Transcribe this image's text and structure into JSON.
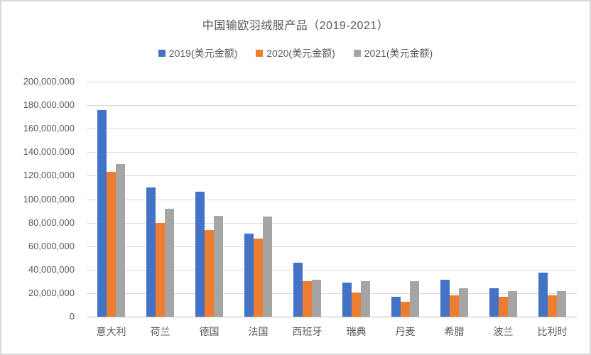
{
  "chart_data": {
    "type": "bar",
    "title": "中国输欧羽绒服产品（2019-2021）",
    "categories": [
      "意大利",
      "荷兰",
      "德国",
      "法国",
      "西班牙",
      "瑞典",
      "丹麦",
      "希腊",
      "波兰",
      "比利时"
    ],
    "series": [
      {
        "name": "2019(美元金额)",
        "color": "#4472C4",
        "values": [
          176000000,
          110000000,
          106500000,
          70500000,
          46000000,
          29000000,
          17000000,
          31500000,
          24000000,
          37500000
        ]
      },
      {
        "name": "2020(美元金额)",
        "color": "#ED7D31",
        "values": [
          123000000,
          80000000,
          74000000,
          66500000,
          30000000,
          20500000,
          13000000,
          18000000,
          17000000,
          18000000
        ]
      },
      {
        "name": "2021(美元金额)",
        "color": "#A5A5A5",
        "values": [
          130000000,
          92000000,
          86000000,
          85000000,
          31500000,
          30000000,
          30000000,
          24000000,
          22000000,
          22000000
        ]
      }
    ],
    "ylim": [
      0,
      200000000
    ],
    "ytick_step": 20000000,
    "ytick_labels": [
      "0",
      "20,000,000",
      "40,000,000",
      "60,000,000",
      "80,000,000",
      "100,000,000",
      "120,000,000",
      "140,000,000",
      "160,000,000",
      "180,000,000",
      "200,000,000"
    ],
    "grid": true,
    "legend_position": "top",
    "colors": {
      "grid": "#D9D9D9",
      "axis_line": "#BFBFBF",
      "text": "#595959",
      "frame_border": "#D9D9D9",
      "background": "#FFFFFF"
    }
  }
}
